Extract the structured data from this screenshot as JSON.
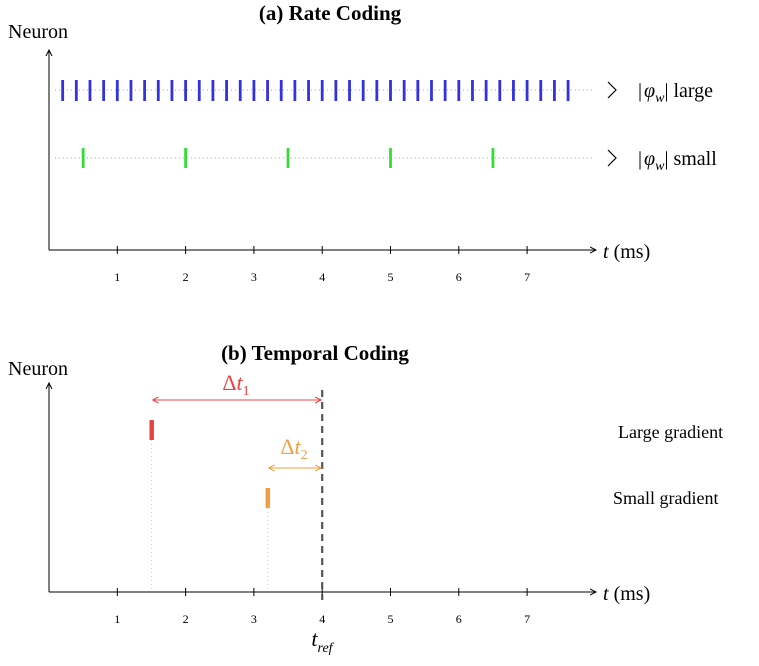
{
  "colors": {
    "axis": "#000000",
    "large": "#3333dd",
    "small": "#33dd33",
    "dt1": "#e84444",
    "dt2": "#f0a040",
    "ref": "#555555",
    "dotted": "#aaaaaa"
  },
  "panel_a": {
    "title": "(a) Rate Coding",
    "ylabel": "Neuron",
    "xlabel_var": "t",
    "xlabel_unit": "(ms)",
    "ticks": [
      "1",
      "2",
      "3",
      "4",
      "5",
      "6",
      "7"
    ],
    "large_label_pre": "|",
    "large_label_phi": "φ",
    "large_label_sub": "w",
    "large_label_post": "| large",
    "small_label_pre": "|",
    "small_label_phi": "φ",
    "small_label_sub": "w",
    "small_label_post": "| small"
  },
  "panel_b": {
    "title": "(b) Temporal Coding",
    "ylabel": "Neuron",
    "xlabel_var": "t",
    "xlabel_unit": "(ms)",
    "ticks": [
      "1",
      "2",
      "3",
      "4",
      "5",
      "6",
      "7"
    ],
    "dt1_delta": "Δ",
    "dt1_var": "t",
    "dt1_sub": "1",
    "dt2_delta": "Δ",
    "dt2_var": "t",
    "dt2_sub": "2",
    "large_gradient": "Large gradient",
    "small_gradient": "Small gradient",
    "tref_var": "t",
    "tref_sub": "ref"
  },
  "chart_data": [
    {
      "type": "scatter",
      "title": "(a) Rate Coding",
      "ylabel": "Neuron",
      "xlabel": "t (ms)",
      "xticks": [
        1,
        2,
        3,
        4,
        5,
        6,
        7
      ],
      "xlim": [
        0,
        8
      ],
      "series": [
        {
          "name": "|φw| large",
          "spikes": [
            0.2,
            0.4,
            0.6,
            0.8,
            1.0,
            1.2,
            1.4,
            1.6,
            1.8,
            2.0,
            2.2,
            2.4,
            2.6,
            2.8,
            3.0,
            3.2,
            3.4,
            3.6,
            3.8,
            4.0,
            4.2,
            4.4,
            4.6,
            4.8,
            5.0,
            5.2,
            5.4,
            5.6,
            5.8,
            6.0,
            6.2,
            6.4,
            6.6,
            6.8,
            7.0,
            7.2,
            7.4,
            7.6
          ]
        },
        {
          "name": "|φw| small",
          "spikes": [
            0.5,
            2.0,
            3.5,
            5.0,
            6.5
          ]
        }
      ]
    },
    {
      "type": "scatter",
      "title": "(b) Temporal Coding",
      "ylabel": "Neuron",
      "xlabel": "t (ms)",
      "xticks": [
        1,
        2,
        3,
        4,
        5,
        6,
        7
      ],
      "xlim": [
        0,
        8
      ],
      "t_ref": 4.0,
      "series": [
        {
          "name": "Large gradient",
          "spikes": [
            1.5
          ]
        },
        {
          "name": "Small gradient",
          "spikes": [
            3.2
          ]
        }
      ]
    }
  ]
}
